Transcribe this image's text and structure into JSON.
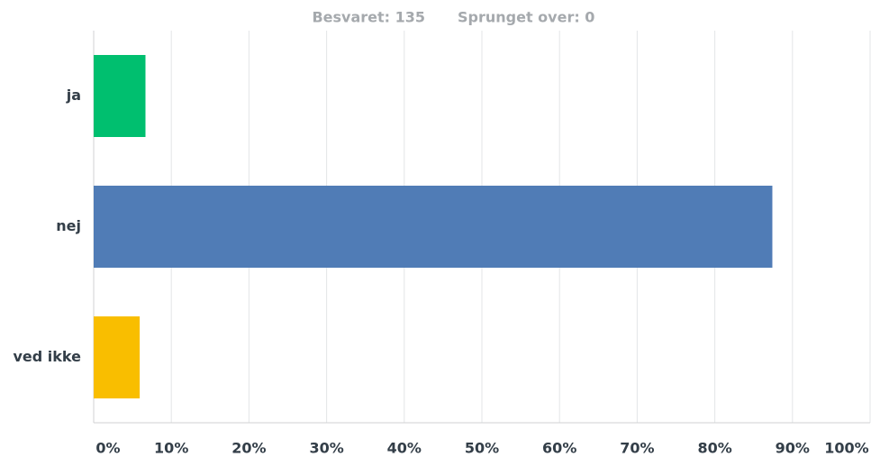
{
  "chart_data": {
    "type": "barh",
    "answered": "Besvaret: 135",
    "skipped": "Sprunget over: 0",
    "categories": [
      "ja",
      "nej",
      "ved ikke"
    ],
    "values": [
      6.67,
      87.41,
      5.93
    ],
    "colors": [
      "#00bf6f",
      "#507cb6",
      "#f9be00"
    ],
    "xlim": [
      0,
      100
    ],
    "xticks": [
      {
        "value": 0,
        "label": "0%"
      },
      {
        "value": 10,
        "label": "10%"
      },
      {
        "value": 20,
        "label": "20%"
      },
      {
        "value": 30,
        "label": "30%"
      },
      {
        "value": 40,
        "label": "40%"
      },
      {
        "value": 50,
        "label": "50%"
      },
      {
        "value": 60,
        "label": "60%"
      },
      {
        "value": 70,
        "label": "70%"
      },
      {
        "value": 80,
        "label": "80%"
      },
      {
        "value": 90,
        "label": "90%"
      },
      {
        "value": 100,
        "label": "100%"
      }
    ],
    "grid": true
  }
}
